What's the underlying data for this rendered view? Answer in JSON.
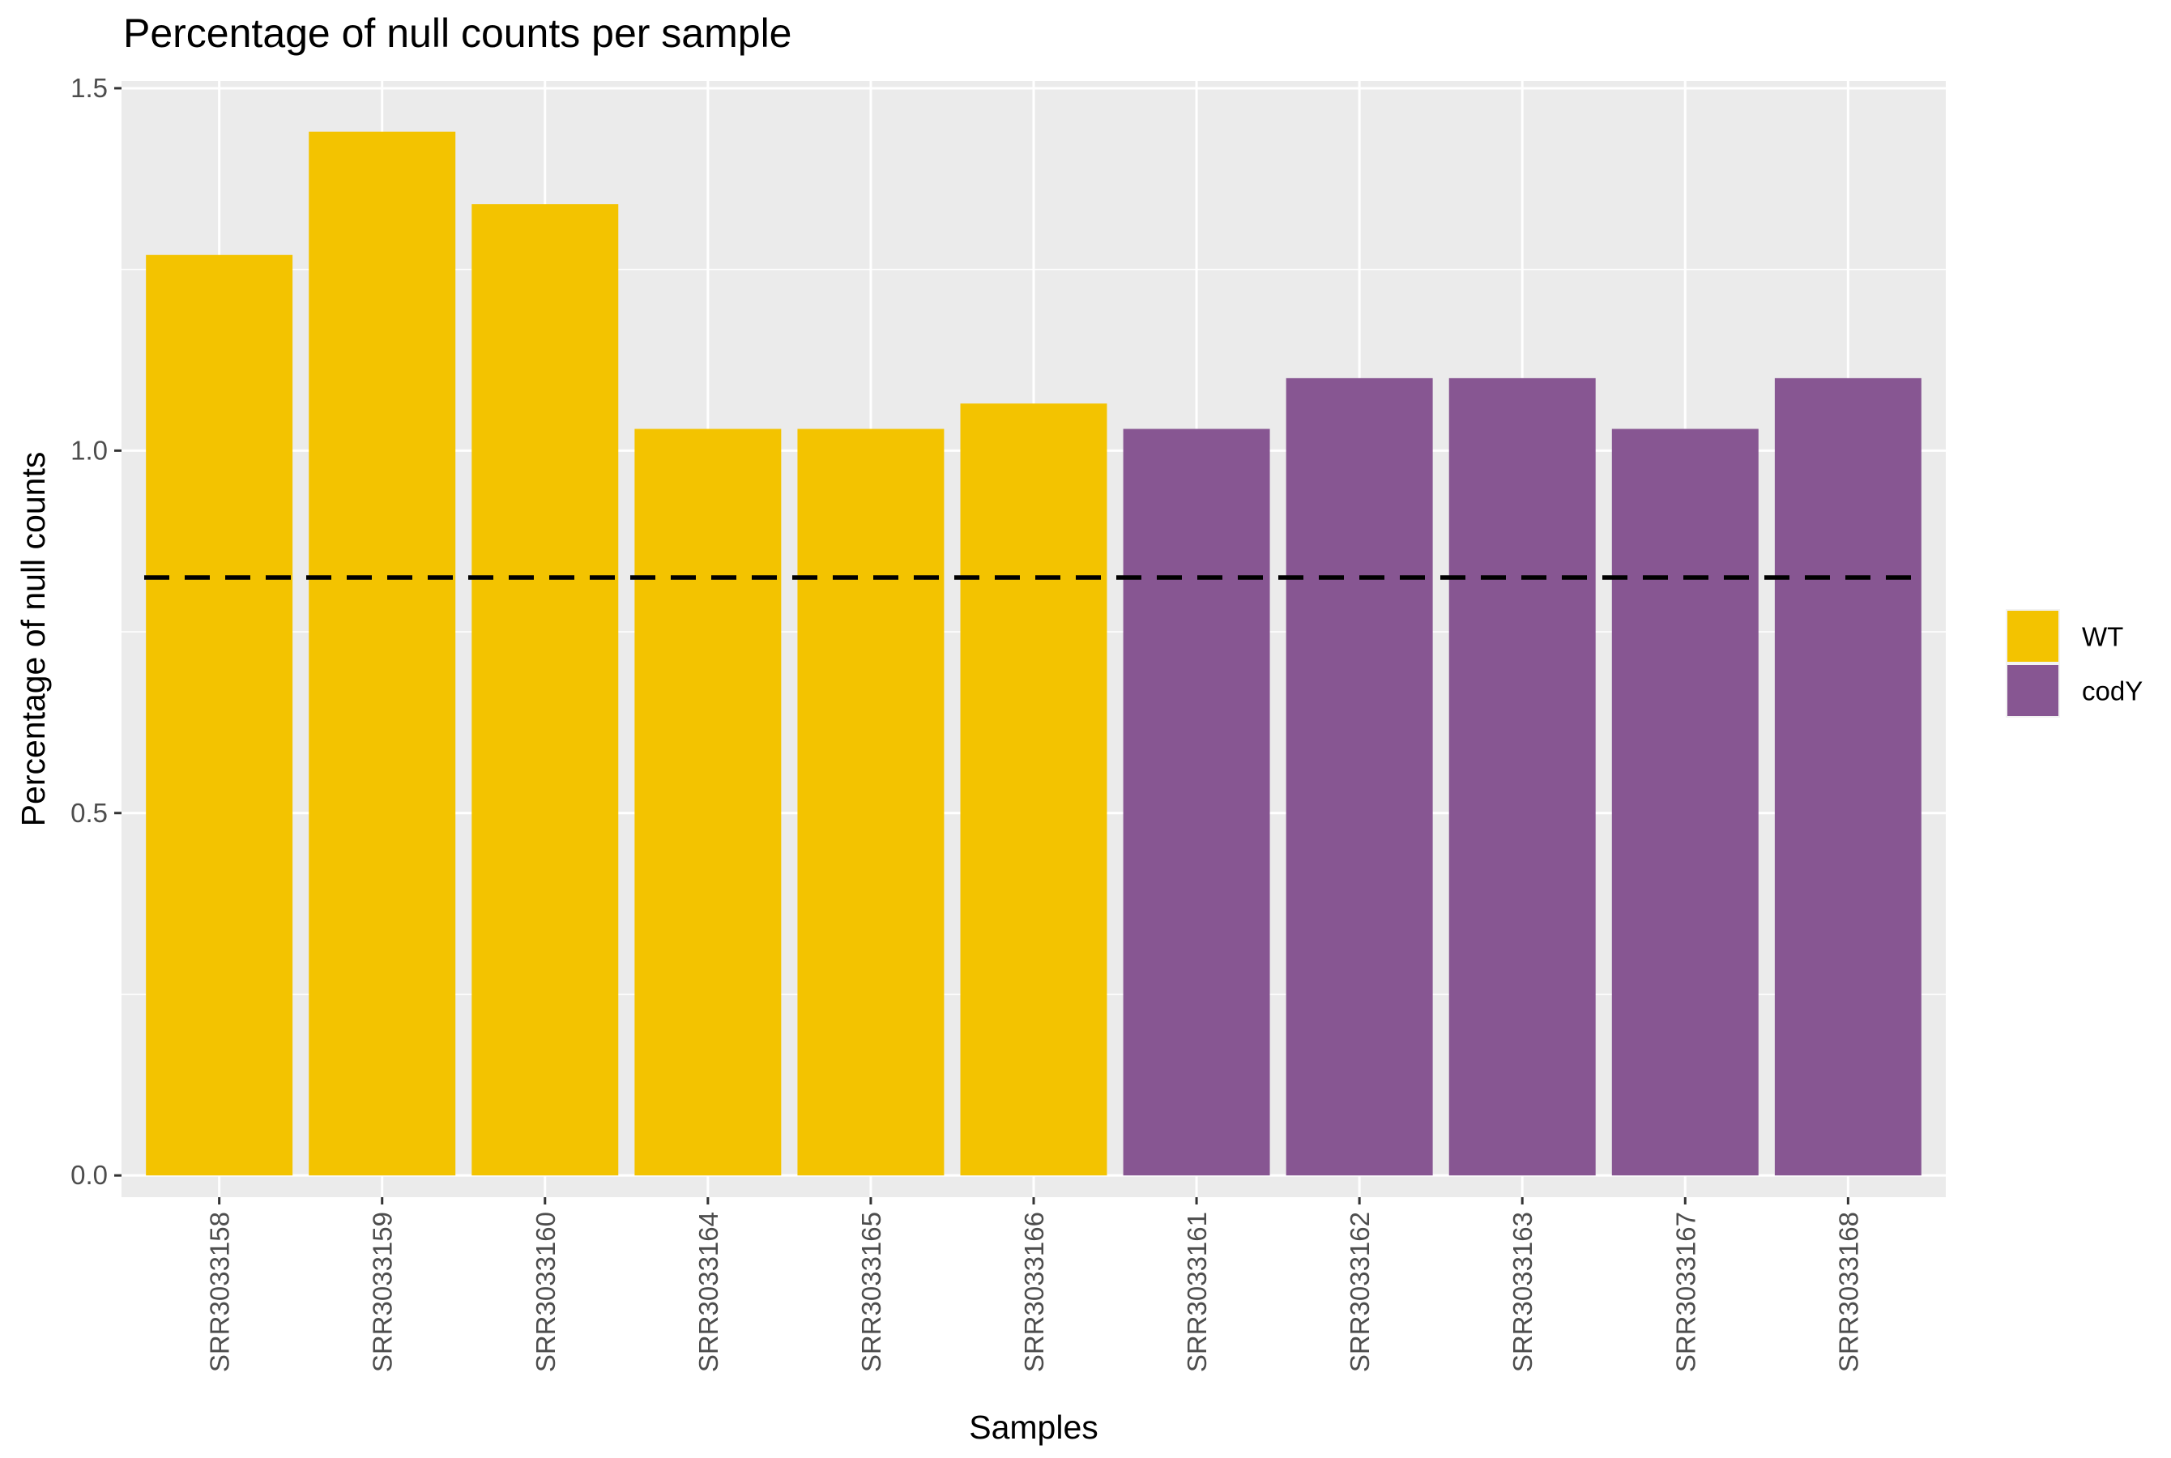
{
  "chart_data": {
    "type": "bar",
    "title": "Percentage of null counts per sample",
    "xlabel": "Samples",
    "ylabel": "Percentage of null counts",
    "categories": [
      "SRR3033158",
      "SRR3033159",
      "SRR3033160",
      "SRR3033164",
      "SRR3033165",
      "SRR3033166",
      "SRR3033161",
      "SRR3033162",
      "SRR3033163",
      "SRR3033167",
      "SRR3033168"
    ],
    "values": [
      1.27,
      1.44,
      1.34,
      1.03,
      1.03,
      1.065,
      1.03,
      1.1,
      1.1,
      1.03,
      1.1
    ],
    "groups": [
      "WT",
      "WT",
      "WT",
      "WT",
      "WT",
      "WT",
      "codY",
      "codY",
      "codY",
      "codY",
      "codY"
    ],
    "series": [
      {
        "name": "WT",
        "color": "#F3C300"
      },
      {
        "name": "codY",
        "color": "#875692"
      }
    ],
    "reference_line": {
      "value": 0.825,
      "style": "dashed",
      "color": "#000000"
    },
    "ylim": [
      -0.03,
      1.51
    ],
    "yticks": [
      0.0,
      0.5,
      1.0,
      1.5
    ],
    "ytick_labels": [
      "0.0",
      "0.5",
      "1.0",
      "1.5"
    ],
    "grid": true,
    "panel_background": "#EBEBEB",
    "legend_position": "right"
  }
}
